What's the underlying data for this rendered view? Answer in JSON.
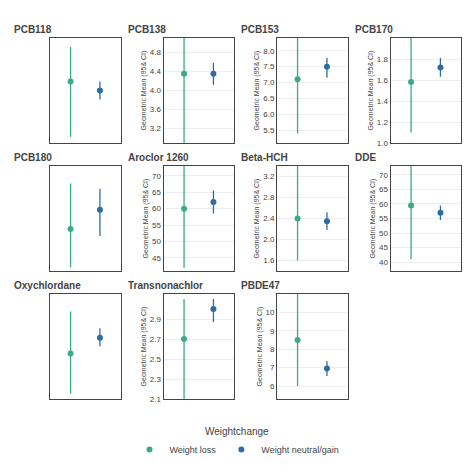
{
  "chart_data": [
    {
      "type": "scatter",
      "title": "PCB118",
      "marker": "circle",
      "grid": true,
      "tick_labels": false,
      "xlim": [
        0.3,
        2.7
      ],
      "xticks": [],
      "ylim": [
        2.3,
        5.8
      ],
      "yticks": [],
      "series": [
        {
          "name": "Weight loss",
          "color": "#3aaa8a",
          "x": [
            1
          ],
          "values": [
            4.35
          ],
          "ci_low": [
            2.5
          ],
          "ci_high": [
            5.5
          ]
        },
        {
          "name": "Weight neutral/gain",
          "color": "#2e6da4",
          "x": [
            2
          ],
          "values": [
            4.05
          ],
          "ci_low": [
            3.75
          ],
          "ci_high": [
            4.35
          ]
        }
      ]
    },
    {
      "type": "scatter",
      "title": "PCB138",
      "ylabel": "Geometric Mean (95& CI)",
      "marker": "circle",
      "grid": true,
      "tick_labels": "y",
      "xlim": [
        0.3,
        2.7
      ],
      "xticks": [],
      "ylim": [
        2.9,
        5.1
      ],
      "yticks": [
        3.2,
        3.6,
        {
          "value": 4.0,
          "label": "4.0"
        },
        4.4,
        4.8
      ],
      "series": [
        {
          "name": "Weight loss",
          "color": "#3aaa8a",
          "x": [
            1
          ],
          "values": [
            4.35
          ],
          "ci_low": [
            2.9
          ],
          "ci_high": [
            5.1
          ]
        },
        {
          "name": "Weight neutral/gain",
          "color": "#2e6da4",
          "x": [
            2
          ],
          "values": [
            4.35
          ],
          "ci_low": [
            4.12
          ],
          "ci_high": [
            4.58
          ]
        }
      ]
    },
    {
      "type": "scatter",
      "title": "PCB153",
      "ylabel": "Geometric Mean (95& CI)",
      "marker": "circle",
      "grid": true,
      "tick_labels": "y",
      "xlim": [
        0.3,
        2.7
      ],
      "xticks": [],
      "ylim": [
        5.1,
        8.4
      ],
      "yticks": [
        5.5,
        {
          "value": 6.0,
          "label": "6.0"
        },
        6.5,
        {
          "value": 7.0,
          "label": "7.0"
        },
        7.5,
        {
          "value": 8.0,
          "label": "8.0"
        }
      ],
      "series": [
        {
          "name": "Weight loss",
          "color": "#3aaa8a",
          "x": [
            1
          ],
          "values": [
            7.1
          ],
          "ci_low": [
            5.4
          ],
          "ci_high": [
            8.4
          ]
        },
        {
          "name": "Weight neutral/gain",
          "color": "#2e6da4",
          "x": [
            2
          ],
          "values": [
            7.5
          ],
          "ci_low": [
            7.15
          ],
          "ci_high": [
            7.78
          ]
        }
      ]
    },
    {
      "type": "scatter",
      "title": "PCB170",
      "ylabel": "Geometric Mean (95& CI)",
      "marker": "circle",
      "grid": true,
      "tick_labels": "y",
      "xlim": [
        0.3,
        2.7
      ],
      "xticks": [],
      "ylim": [
        1.0,
        2.0
      ],
      "yticks": [
        {
          "value": 1.0,
          "label": "1.0"
        },
        1.2,
        1.4,
        1.6,
        1.8
      ],
      "series": [
        {
          "name": "Weight loss",
          "color": "#3aaa8a",
          "x": [
            1
          ],
          "values": [
            1.58
          ],
          "ci_low": [
            1.1
          ],
          "ci_high": [
            2.0
          ]
        },
        {
          "name": "Weight neutral/gain",
          "color": "#2e6da4",
          "x": [
            2
          ],
          "values": [
            1.72
          ],
          "ci_low": [
            1.63
          ],
          "ci_high": [
            1.81
          ]
        }
      ]
    },
    {
      "type": "scatter",
      "title": "PCB180",
      "marker": "circle",
      "grid": true,
      "tick_labels": false,
      "xlim": [
        0.3,
        2.7
      ],
      "xticks": [],
      "ylim": [
        -1.5,
        4.5
      ],
      "yticks": [],
      "series": [
        {
          "name": "Weight loss",
          "color": "#3aaa8a",
          "x": [
            1
          ],
          "values": [
            0.9
          ],
          "ci_low": [
            -1.3
          ],
          "ci_high": [
            3.5
          ]
        },
        {
          "name": "Weight neutral/gain",
          "color": "#2e6da4",
          "x": [
            2
          ],
          "values": [
            2.0
          ],
          "ci_low": [
            0.5
          ],
          "ci_high": [
            3.2
          ]
        }
      ]
    },
    {
      "type": "scatter",
      "title": "Aroclor 1260",
      "ylabel": "Geometric Mean (95& CI)",
      "marker": "circle",
      "grid": true,
      "tick_labels": "y",
      "xlim": [
        0.3,
        2.7
      ],
      "xticks": [],
      "ylim": [
        41,
        73
      ],
      "yticks": [
        45,
        50,
        55,
        60,
        65,
        70
      ],
      "series": [
        {
          "name": "Weight loss",
          "color": "#3aaa8a",
          "x": [
            1
          ],
          "values": [
            60.0
          ],
          "ci_low": [
            42.0
          ],
          "ci_high": [
            73.0
          ]
        },
        {
          "name": "Weight neutral/gain",
          "color": "#2e6da4",
          "x": [
            2
          ],
          "values": [
            62.0
          ],
          "ci_low": [
            58.5
          ],
          "ci_high": [
            65.5
          ]
        }
      ]
    },
    {
      "type": "scatter",
      "title": "Beta-HCH",
      "ylabel": "Geometric Mean (95& CI)",
      "marker": "circle",
      "grid": true,
      "tick_labels": "y",
      "xlim": [
        0.3,
        2.7
      ],
      "xticks": [],
      "ylim": [
        1.4,
        3.4
      ],
      "yticks": [
        1.6,
        {
          "value": 2.0,
          "label": "2.0"
        },
        2.4,
        2.8,
        3.2
      ],
      "series": [
        {
          "name": "Weight loss",
          "color": "#3aaa8a",
          "x": [
            1
          ],
          "values": [
            2.4
          ],
          "ci_low": [
            1.6
          ],
          "ci_high": [
            3.4
          ]
        },
        {
          "name": "Weight neutral/gain",
          "color": "#2e6da4",
          "x": [
            2
          ],
          "values": [
            2.35
          ],
          "ci_low": [
            2.18
          ],
          "ci_high": [
            2.52
          ]
        }
      ]
    },
    {
      "type": "scatter",
      "title": "DDE",
      "ylabel": "Geometric Mean (95& CI)",
      "marker": "circle",
      "grid": true,
      "tick_labels": "y",
      "xlim": [
        0.3,
        2.7
      ],
      "xticks": [],
      "ylim": [
        37,
        73
      ],
      "yticks": [
        40,
        45,
        50,
        55,
        60,
        65,
        70
      ],
      "series": [
        {
          "name": "Weight loss",
          "color": "#3aaa8a",
          "x": [
            1
          ],
          "values": [
            59.5
          ],
          "ci_low": [
            41.0
          ],
          "ci_high": [
            73.0
          ]
        },
        {
          "name": "Weight neutral/gain",
          "color": "#2e6da4",
          "x": [
            2
          ],
          "values": [
            57.0
          ],
          "ci_low": [
            54.5
          ],
          "ci_high": [
            59.5
          ]
        }
      ]
    },
    {
      "type": "scatter",
      "title": "Oxychlordane",
      "marker": "circle",
      "grid": true,
      "tick_labels": false,
      "xlim": [
        0.3,
        2.7
      ],
      "xticks": [],
      "ylim": [
        -0.5,
        5.5
      ],
      "yticks": [],
      "series": [
        {
          "name": "Weight loss",
          "color": "#3aaa8a",
          "x": [
            1
          ],
          "values": [
            2.1
          ],
          "ci_low": [
            -0.2
          ],
          "ci_high": [
            4.5
          ]
        },
        {
          "name": "Weight neutral/gain",
          "color": "#2e6da4",
          "x": [
            2
          ],
          "values": [
            3.0
          ],
          "ci_low": [
            2.5
          ],
          "ci_high": [
            3.55
          ]
        }
      ]
    },
    {
      "type": "scatter",
      "title": "Transnonachlor",
      "ylabel": "Geometric Mean (95& CI)",
      "marker": "circle",
      "grid": true,
      "tick_labels": "y",
      "xlim": [
        0.3,
        2.7
      ],
      "xticks": [],
      "ylim": [
        2.1,
        3.15
      ],
      "yticks": [
        2.1,
        2.3,
        2.5,
        2.7,
        2.9
      ],
      "series": [
        {
          "name": "Weight loss",
          "color": "#3aaa8a",
          "x": [
            1
          ],
          "values": [
            2.7
          ],
          "ci_low": [
            2.1
          ],
          "ci_high": [
            3.1
          ]
        },
        {
          "name": "Weight neutral/gain",
          "color": "#2e6da4",
          "x": [
            2
          ],
          "values": [
            3.0
          ],
          "ci_low": [
            2.87
          ],
          "ci_high": [
            3.1
          ]
        }
      ]
    },
    {
      "type": "scatter",
      "title": "PBDE47",
      "ylabel": "Geometric Mean (95& CI)",
      "marker": "circle",
      "grid": true,
      "tick_labels": "y",
      "xlim": [
        0.3,
        2.7
      ],
      "xticks": [],
      "ylim": [
        5.3,
        11.0
      ],
      "yticks": [
        6,
        7,
        8,
        9,
        10
      ],
      "series": [
        {
          "name": "Weight loss",
          "color": "#3aaa8a",
          "x": [
            1
          ],
          "values": [
            8.5
          ],
          "ci_low": [
            6.0
          ],
          "ci_high": [
            11.0
          ]
        },
        {
          "name": "Weight neutral/gain",
          "color": "#2e6da4",
          "x": [
            2
          ],
          "values": [
            6.95
          ],
          "ci_low": [
            6.55
          ],
          "ci_high": [
            7.35
          ]
        }
      ]
    }
  ],
  "legend": "bottom",
  "legend_title": "Weightchange"
}
